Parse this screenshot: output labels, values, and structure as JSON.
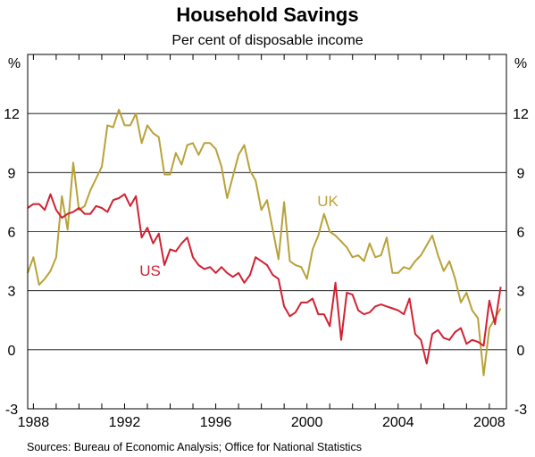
{
  "chart_data": {
    "type": "line",
    "title": "Household Savings",
    "subtitle": "Per cent of disposable income",
    "unit_left": "%",
    "unit_right": "%",
    "source": "Sources: Bureau of Economic Analysis; Office for National Statistics",
    "xlim": [
      1987.75,
      2008.75
    ],
    "ylim": [
      -3,
      15
    ],
    "yticks": [
      -3,
      0,
      3,
      6,
      9,
      12
    ],
    "xticks": [
      1988,
      1992,
      1996,
      2000,
      2004,
      2008
    ],
    "xtick_labels": [
      "1988",
      "1992",
      "1996",
      "2000",
      "2004",
      "2008"
    ],
    "grid": "horizontal",
    "series": [
      {
        "name": "US",
        "color": "#d12232",
        "x": [
          1987.75,
          1988.0,
          1988.25,
          1988.5,
          1988.75,
          1989.0,
          1989.25,
          1989.5,
          1989.75,
          1990.0,
          1990.25,
          1990.5,
          1990.75,
          1991.0,
          1991.25,
          1991.5,
          1991.75,
          1992.0,
          1992.25,
          1992.5,
          1992.75,
          1993.0,
          1993.25,
          1993.5,
          1993.75,
          1994.0,
          1994.25,
          1994.5,
          1994.75,
          1995.0,
          1995.25,
          1995.5,
          1995.75,
          1996.0,
          1996.25,
          1996.5,
          1996.75,
          1997.0,
          1997.25,
          1997.5,
          1997.75,
          1998.0,
          1998.25,
          1998.5,
          1998.75,
          1999.0,
          1999.25,
          1999.5,
          1999.75,
          2000.0,
          2000.25,
          2000.5,
          2000.75,
          2001.0,
          2001.25,
          2001.5,
          2001.75,
          2002.0,
          2002.25,
          2002.5,
          2002.75,
          2003.0,
          2003.25,
          2003.5,
          2003.75,
          2004.0,
          2004.25,
          2004.5,
          2004.75,
          2005.0,
          2005.25,
          2005.5,
          2005.75,
          2006.0,
          2006.25,
          2006.5,
          2006.75,
          2007.0,
          2007.25,
          2007.5,
          2007.75,
          2008.0,
          2008.25,
          2008.5
        ],
        "values": [
          7.2,
          7.4,
          7.4,
          7.1,
          7.9,
          7.1,
          6.7,
          6.9,
          7.0,
          7.2,
          6.9,
          6.9,
          7.3,
          7.2,
          7.0,
          7.6,
          7.7,
          7.9,
          7.3,
          7.8,
          5.7,
          6.2,
          5.4,
          5.9,
          4.3,
          5.1,
          5.0,
          5.4,
          5.7,
          4.7,
          4.3,
          4.1,
          4.2,
          3.9,
          4.2,
          3.9,
          3.7,
          3.9,
          3.4,
          3.8,
          4.7,
          4.5,
          4.3,
          3.8,
          3.6,
          2.2,
          1.7,
          1.9,
          2.4,
          2.4,
          2.6,
          1.8,
          1.8,
          1.2,
          3.4,
          0.5,
          2.9,
          2.8,
          2.0,
          1.8,
          1.9,
          2.2,
          2.3,
          2.2,
          2.1,
          2.0,
          1.8,
          2.6,
          0.8,
          0.5,
          -0.7,
          0.8,
          1.0,
          0.6,
          0.5,
          0.9,
          1.1,
          0.3,
          0.5,
          0.4,
          0.2,
          2.5,
          1.3,
          3.2
        ]
      },
      {
        "name": "UK",
        "color": "#b8a23a",
        "x": [
          1987.75,
          1988.0,
          1988.25,
          1988.5,
          1988.75,
          1989.0,
          1989.25,
          1989.5,
          1989.75,
          1990.0,
          1990.25,
          1990.5,
          1990.75,
          1991.0,
          1991.25,
          1991.5,
          1991.75,
          1992.0,
          1992.25,
          1992.5,
          1992.75,
          1993.0,
          1993.25,
          1993.5,
          1993.75,
          1994.0,
          1994.25,
          1994.5,
          1994.75,
          1995.0,
          1995.25,
          1995.5,
          1995.75,
          1996.0,
          1996.25,
          1996.5,
          1996.75,
          1997.0,
          1997.25,
          1997.5,
          1997.75,
          1998.0,
          1998.25,
          1998.5,
          1998.75,
          1999.0,
          1999.25,
          1999.5,
          1999.75,
          2000.0,
          2000.25,
          2000.5,
          2000.75,
          2001.0,
          2001.25,
          2001.5,
          2001.75,
          2002.0,
          2002.25,
          2002.5,
          2002.75,
          2003.0,
          2003.25,
          2003.5,
          2003.75,
          2004.0,
          2004.25,
          2004.5,
          2004.75,
          2005.0,
          2005.25,
          2005.5,
          2005.75,
          2006.0,
          2006.25,
          2006.5,
          2006.75,
          2007.0,
          2007.25,
          2007.5,
          2007.75,
          2008.0,
          2008.25,
          2008.5
        ],
        "values": [
          3.9,
          4.7,
          3.3,
          3.6,
          4.0,
          4.7,
          7.8,
          6.1,
          9.5,
          7.1,
          7.3,
          8.1,
          8.7,
          9.3,
          11.4,
          11.3,
          12.2,
          11.4,
          11.4,
          12.0,
          10.5,
          11.4,
          11.0,
          10.8,
          8.9,
          8.9,
          10.0,
          9.4,
          10.4,
          10.5,
          9.9,
          10.5,
          10.5,
          10.2,
          9.3,
          7.7,
          8.8,
          9.9,
          10.4,
          9.1,
          8.6,
          7.1,
          7.6,
          6.1,
          4.6,
          7.5,
          4.5,
          4.3,
          4.2,
          3.6,
          5.1,
          5.8,
          6.9,
          6.0,
          5.8,
          5.5,
          5.2,
          4.7,
          4.8,
          4.5,
          5.4,
          4.7,
          4.8,
          5.7,
          3.9,
          3.9,
          4.2,
          4.1,
          4.5,
          4.8,
          5.3,
          5.8,
          4.8,
          4.0,
          4.5,
          3.6,
          2.4,
          2.9,
          2.0,
          1.6,
          -1.3,
          1.1,
          1.6,
          2.1
        ]
      }
    ]
  }
}
